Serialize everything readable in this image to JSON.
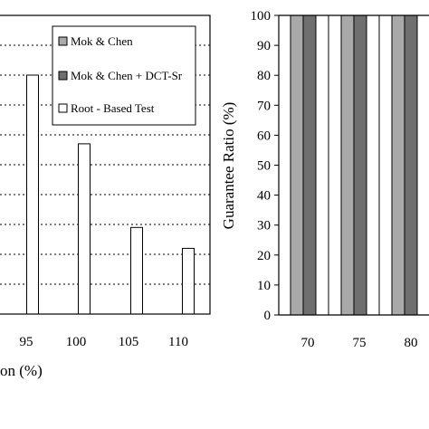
{
  "chart_data": [
    {
      "type": "bar",
      "title": "",
      "xlabel": "on (%)",
      "ylabel": "",
      "categories": [
        "95",
        "100",
        "105",
        "110"
      ],
      "ylim": [
        0,
        100
      ],
      "grid": "horizontal-dotted",
      "legend_position": "top-right",
      "series": [
        {
          "name": "Mok & Chen",
          "color": "#a9a9a9",
          "values": [
            0,
            0,
            0,
            0
          ]
        },
        {
          "name": "Mok & Chen + DCT-Sr",
          "color": "#6f6f6f",
          "values": [
            0,
            0,
            0,
            0
          ]
        },
        {
          "name": "Root - Based Test",
          "color": "#ffffff",
          "values": [
            80,
            57,
            29,
            22
          ]
        }
      ]
    },
    {
      "type": "bar",
      "title": "",
      "xlabel": "",
      "ylabel": "Guarantee Ratio (%)",
      "categories": [
        "70",
        "75",
        "80"
      ],
      "yticks": [
        "0",
        "10",
        "20",
        "30",
        "40",
        "50",
        "60",
        "70",
        "80",
        "90",
        "100"
      ],
      "ylim": [
        0,
        100
      ],
      "grid": "none",
      "series": [
        {
          "name": "Mok & Chen",
          "color": "#a9a9a9",
          "values": [
            100,
            100,
            100
          ]
        },
        {
          "name": "Mok & Chen + DCT-Sr",
          "color": "#6f6f6f",
          "values": [
            100,
            100,
            100
          ]
        },
        {
          "name": "Root - Based Test",
          "color": "#ffffff",
          "values": [
            100,
            100,
            100
          ]
        }
      ]
    }
  ]
}
